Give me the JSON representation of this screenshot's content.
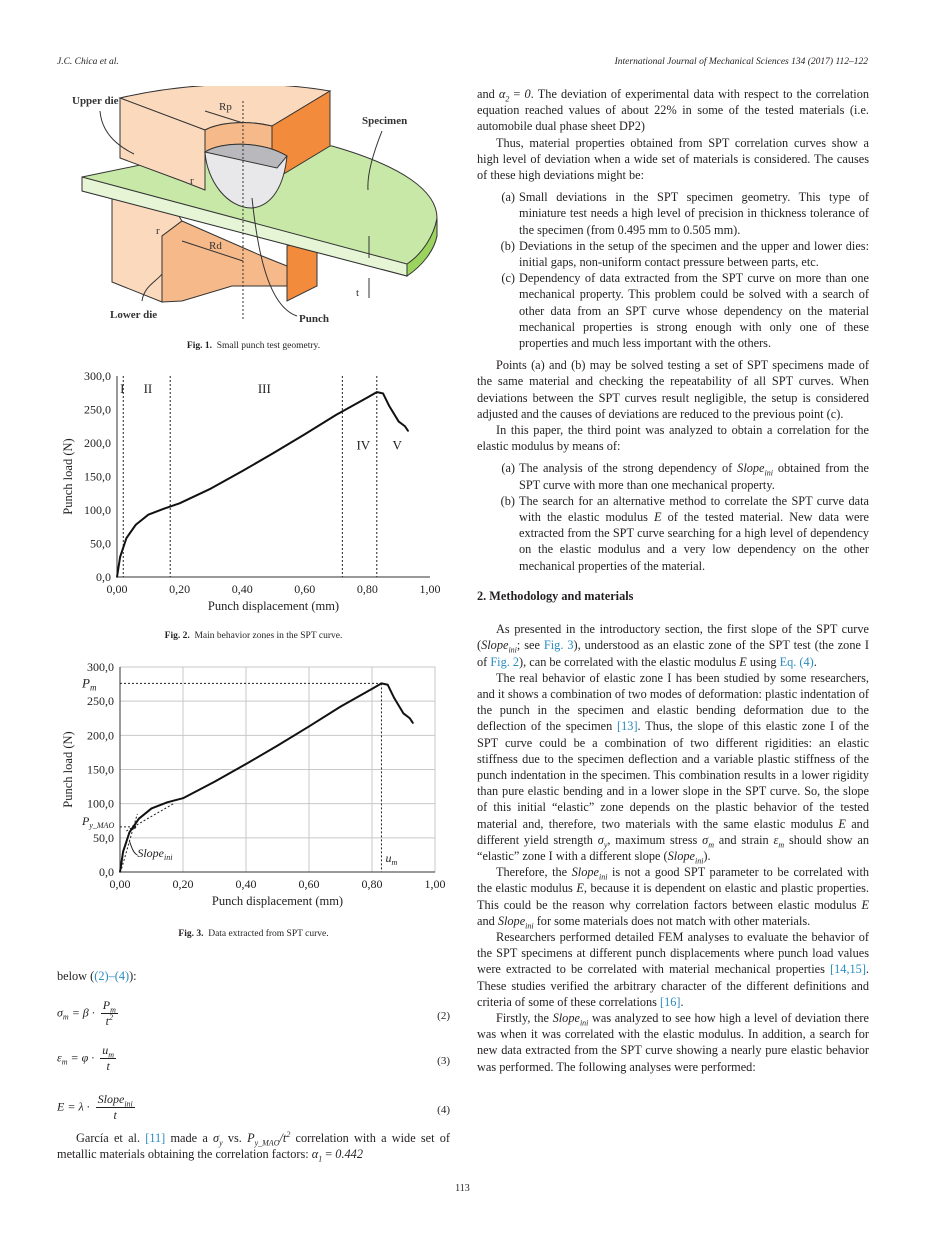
{
  "header": {
    "authors": "J.C. Chica et al.",
    "journal": "International Journal of Mechanical Sciences 134 (2017) 112–122"
  },
  "fig1": {
    "labels": {
      "upper_die": "Upper die",
      "lower_die": "Lower die",
      "specimen": "Specimen",
      "punch": "Punch",
      "rp": "Rp",
      "rd": "Rd",
      "r1": "r",
      "r2": "r",
      "t": "t"
    },
    "colors": {
      "die_light": "#fbd9bd",
      "die_mid": "#f6b98a",
      "die_dark": "#f28c3c",
      "specimen": "#c8e8a8",
      "specimen_edge": "#9ad45e",
      "punch": "#e8e8ea"
    },
    "caption_label": "Fig. 1.",
    "caption_text": "Small punch test geometry."
  },
  "fig2": {
    "caption_label": "Fig. 2.",
    "caption_text": "Main behavior zones in the SPT curve."
  },
  "fig3": {
    "caption_label": "Fig. 3.",
    "caption_text": "Data extracted from SPT curve."
  },
  "chart_data": [
    {
      "type": "line",
      "xlabel": "Punch displacement (mm)",
      "ylabel": "Punch load (N)",
      "xlim": [
        0,
        1.0
      ],
      "ylim": [
        0,
        300
      ],
      "x_ticks": [
        "0,00",
        "0,20",
        "0,40",
        "0,60",
        "0,80",
        "1,00"
      ],
      "y_ticks": [
        "0,0",
        "50,0",
        "100,0",
        "150,0",
        "200,0",
        "250,0",
        "300,0"
      ],
      "grid": false,
      "x": [
        0,
        0.01,
        0.03,
        0.06,
        0.1,
        0.15,
        0.2,
        0.3,
        0.4,
        0.5,
        0.6,
        0.7,
        0.8,
        0.83,
        0.85,
        0.87,
        0.9,
        0.92,
        0.93
      ],
      "y": [
        0,
        30,
        58,
        78,
        93,
        102,
        110,
        132,
        158,
        185,
        213,
        242,
        268,
        276,
        274,
        255,
        232,
        225,
        218
      ],
      "zone_boundaries": [
        0.02,
        0.17,
        0.72,
        0.83
      ],
      "zone_labels": [
        {
          "text": "I",
          "x": 0.01,
          "y": 275
        },
        {
          "text": "II",
          "x": 0.085,
          "y": 275
        },
        {
          "text": "III",
          "x": 0.45,
          "y": 275
        },
        {
          "text": "IV",
          "x": 0.765,
          "y": 190
        },
        {
          "text": "V",
          "x": 0.88,
          "y": 190
        }
      ]
    },
    {
      "type": "line",
      "xlabel": "Punch displacement (mm)",
      "ylabel": "Punch load (N)",
      "xlim": [
        0,
        1.0
      ],
      "ylim": [
        0,
        300
      ],
      "x_ticks": [
        "0,00",
        "0,20",
        "0,40",
        "0,60",
        "0,80",
        "1,00"
      ],
      "y_ticks": [
        "0,0",
        "50,0",
        "100,0",
        "150,0",
        "200,0",
        "250,0",
        "300,0"
      ],
      "grid": true,
      "x": [
        0,
        0.01,
        0.03,
        0.06,
        0.1,
        0.15,
        0.2,
        0.3,
        0.4,
        0.5,
        0.6,
        0.7,
        0.8,
        0.83,
        0.85,
        0.87,
        0.9,
        0.92,
        0.93
      ],
      "y": [
        0,
        30,
        58,
        78,
        93,
        102,
        108,
        132,
        158,
        185,
        213,
        242,
        268,
        276,
        274,
        255,
        232,
        225,
        218
      ],
      "pm": 276,
      "um": 0.83,
      "py_mao": 66,
      "py_mao_x": 0.045,
      "annotations": {
        "pm": "Pm",
        "py": "Py_MAO",
        "slope": "Slopeini",
        "um": "um"
      }
    }
  ],
  "left": {
    "below": [
      "below (",
      [
        "link",
        "(2)–(4)"
      ],
      "):"
    ],
    "eq2": {
      "lhs": "σ",
      "lhs_sub": "m",
      "op": " = β · ",
      "num": "P",
      "num_sub": "m",
      "den": "t",
      "den_sup": "2",
      "num_label": "(2)"
    },
    "eq3": {
      "lhs": "ε",
      "lhs_sub": "m",
      "op": " = φ · ",
      "num": "u",
      "num_sub": "m",
      "den": "t",
      "num_label": "(3)"
    },
    "eq4": {
      "lhs": "E",
      "op": " = λ · ",
      "num": "Slope",
      "num_sub": "ini",
      "den": "t",
      "num_label": "(4)"
    },
    "garcia": [
      "García et al. ",
      [
        "link",
        "[11]"
      ],
      " made a ",
      [
        "i",
        "σ"
      ],
      [
        "sub",
        "y"
      ],
      " vs. ",
      [
        "i",
        "P"
      ],
      [
        "sub",
        "y_MAO"
      ],
      [
        "i",
        "/t"
      ],
      [
        "sup",
        "2"
      ],
      " correlation with a wide set of metallic materials obtaining the correlation factors: ",
      [
        "i",
        "α"
      ],
      [
        "sub",
        "1"
      ],
      " = ",
      [
        "i",
        "0.442"
      ]
    ]
  },
  "right": {
    "p1": [
      "and ",
      [
        "i",
        "α"
      ],
      [
        "sub",
        "2"
      ],
      " = ",
      [
        "i",
        "0"
      ],
      ". The deviation of experimental data with respect to the correlation equation reached values of about 22% in some of the tested materials (i.e. automobile dual phase sheet DP2)"
    ],
    "p2": [
      "Thus, material properties obtained from SPT correlation curves show a high level of deviation when a wide set of materials is considered. The causes of these high deviations might be:"
    ],
    "list1": [
      {
        "label": "(a)",
        "text": [
          "Small deviations in the SPT specimen geometry. This type of miniature test needs a high level of precision in thickness tolerance of the specimen (from 0.495 mm to 0.505 mm)."
        ]
      },
      {
        "label": "(b)",
        "text": [
          "Deviations in the setup of the specimen and the upper and lower dies: initial gaps, non-uniform contact pressure between parts, etc."
        ]
      },
      {
        "label": "(c)",
        "text": [
          "Dependency of data extracted from the SPT curve on more than one mechanical property. This problem could be solved with a search of other data from an SPT curve whose dependency on the material mechanical properties is strong enough with only one of these properties and much less important with the others."
        ]
      }
    ],
    "p3": [
      "Points (a) and (b) may be solved testing a set of SPT specimens made of the same material and checking the repeatability of all SPT curves. When deviations between the SPT curves result negligible, the setup is considered adjusted and the causes of deviations are reduced to the previous point (c)."
    ],
    "p4": [
      "In this paper, the third point was analyzed to obtain a correlation for the elastic modulus by means of:"
    ],
    "list2": [
      {
        "label": "(a)",
        "text": [
          "The analysis of the strong dependency of ",
          [
            "i",
            "Slope"
          ],
          [
            "sub",
            "ini"
          ],
          " obtained from the SPT curve with more than one mechanical property."
        ]
      },
      {
        "label": "(b)",
        "text": [
          "The search for an alternative method to correlate the SPT curve data with the elastic modulus ",
          [
            "i",
            "E"
          ],
          " of the tested material. New data were extracted from the SPT curve searching for a high level of dependency on the elastic modulus and a very low dependency on the other mechanical properties of the material."
        ]
      }
    ],
    "section": "2. Methodology and materials",
    "p5": [
      "As presented in the introductory section, the first slope of the SPT curve (",
      [
        "i",
        "Slope"
      ],
      [
        "sub",
        "ini"
      ],
      "; see ",
      [
        "link",
        "Fig. 3"
      ],
      "), understood as an elastic zone of the SPT test (the zone I of ",
      [
        "link",
        "Fig. 2"
      ],
      "), can be correlated with the elastic modulus ",
      [
        "i",
        "E"
      ],
      " using ",
      [
        "link",
        "Eq. (4)"
      ],
      "."
    ],
    "p6": [
      "The real behavior of elastic zone I has been studied by some researchers, and it shows a combination of two modes of deformation: plastic indentation of the punch in the specimen and elastic bending deformation due to the deflection of the specimen ",
      [
        "link",
        "[13]"
      ],
      ". Thus, the slope of this elastic zone I of the SPT curve could be a combination of two different rigidities: an elastic stiffness due to the specimen deflection and a variable plastic stiffness of the punch indentation in the specimen. This combination results in a lower rigidity than pure elastic bending and in a lower slope in the SPT curve. So, the slope of this initial “elastic” zone depends on the plastic behavior of the tested material and, therefore, two materials with the same elastic modulus ",
      [
        "i",
        "E"
      ],
      " and different yield strength ",
      [
        "i",
        "σ"
      ],
      [
        "sub",
        "y"
      ],
      ", maximum stress ",
      [
        "i",
        "σ"
      ],
      [
        "sub",
        "m"
      ],
      " and strain ",
      [
        "i",
        "ε"
      ],
      [
        "sub",
        "m"
      ],
      " should show an “elastic” zone I with a different slope (",
      [
        "i",
        "Slope"
      ],
      [
        "sub",
        "ini"
      ],
      ")."
    ],
    "p7": [
      "Therefore, the ",
      [
        "i",
        "Slope"
      ],
      [
        "sub",
        "ini"
      ],
      " is not a good SPT parameter to be correlated with the elastic modulus ",
      [
        "i",
        "E"
      ],
      ", because it is dependent on elastic and plastic properties. This could be the reason why correlation factors between elastic modulus ",
      [
        "i",
        "E"
      ],
      " and ",
      [
        "i",
        "Slope"
      ],
      [
        "sub",
        "ini"
      ],
      " for some materials does not match with other materials."
    ],
    "p8": [
      "Researchers performed detailed FEM analyses to evaluate the behavior of the SPT specimens at different punch displacements where punch load values were extracted to be correlated with material mechanical properties ",
      [
        "link",
        "[14,15]"
      ],
      ". These studies verified the arbitrary character of the different definitions and criteria of some of these correlations ",
      [
        "link",
        "[16]"
      ],
      "."
    ],
    "p9": [
      "Firstly, the ",
      [
        "i",
        "Slope"
      ],
      [
        "sub",
        "ini"
      ],
      " was analyzed to see how high a level of deviation there was when it was correlated with the elastic modulus. In addition, a search for new data extracted from the SPT curve showing a nearly pure elastic behavior was performed. The following analyses were performed:"
    ]
  },
  "page_number": "113"
}
